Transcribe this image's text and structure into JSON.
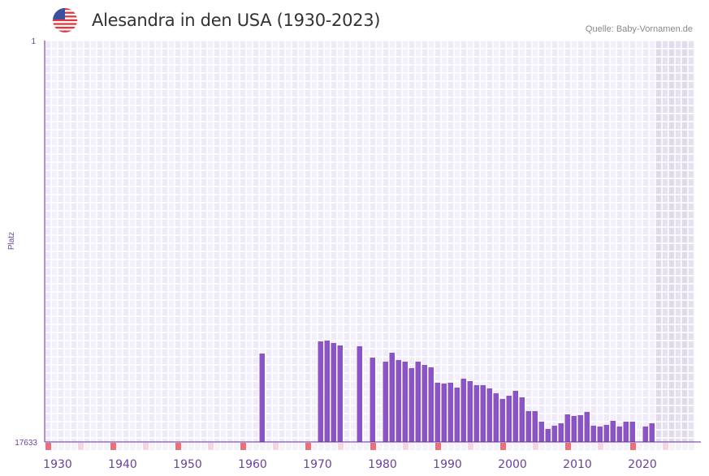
{
  "header": {
    "title": "Alesandra in den USA (1930-2023)",
    "source": "Quelle: Baby-Vornamen.de",
    "flag_icon": "us-flag-icon"
  },
  "colors": {
    "bar": "#8b54c6",
    "axis": "#5c2d91",
    "red_marker": "#e8707a",
    "pink_marker": "#f3d6e0",
    "grid_a": "#efeaf8",
    "grid_b": "#f4f0fb",
    "future": "#e3ddee"
  },
  "chart_data": {
    "type": "bar",
    "title": "Alesandra in den USA (1930-2023)",
    "ylabel": "Platz",
    "xlabel": "",
    "ylim": [
      1,
      17633
    ],
    "y_inverted": true,
    "yticks": [
      "1",
      "17633"
    ],
    "xlim": [
      1928,
      2028
    ],
    "future_from": 2022,
    "xticks": [
      1930,
      1940,
      1950,
      1960,
      1970,
      1980,
      1990,
      2000,
      2010,
      2020
    ],
    "x": [
      1961,
      1970,
      1971,
      1972,
      1973,
      1976,
      1978,
      1980,
      1981,
      1982,
      1983,
      1984,
      1985,
      1986,
      1987,
      1988,
      1989,
      1990,
      1991,
      1992,
      1993,
      1994,
      1995,
      1996,
      1997,
      1998,
      1999,
      2000,
      2001,
      2002,
      2003,
      2004,
      2005,
      2006,
      2007,
      2008,
      2009,
      2010,
      2011,
      2012,
      2013,
      2014,
      2015,
      2016,
      2017,
      2018,
      2020,
      2021
    ],
    "values": [
      13751,
      13215,
      13180,
      13287,
      13394,
      13430,
      13928,
      14106,
      13714,
      14035,
      14106,
      14391,
      14106,
      14249,
      14356,
      15032,
      15068,
      15032,
      15246,
      14854,
      14961,
      15139,
      15139,
      15281,
      15495,
      15744,
      15602,
      15388,
      15673,
      16279,
      16279,
      16742,
      17062,
      16919,
      16813,
      16421,
      16492,
      16457,
      16314,
      16919,
      16955,
      16884,
      16706,
      16955,
      16742,
      16742,
      16955,
      16813
    ]
  }
}
